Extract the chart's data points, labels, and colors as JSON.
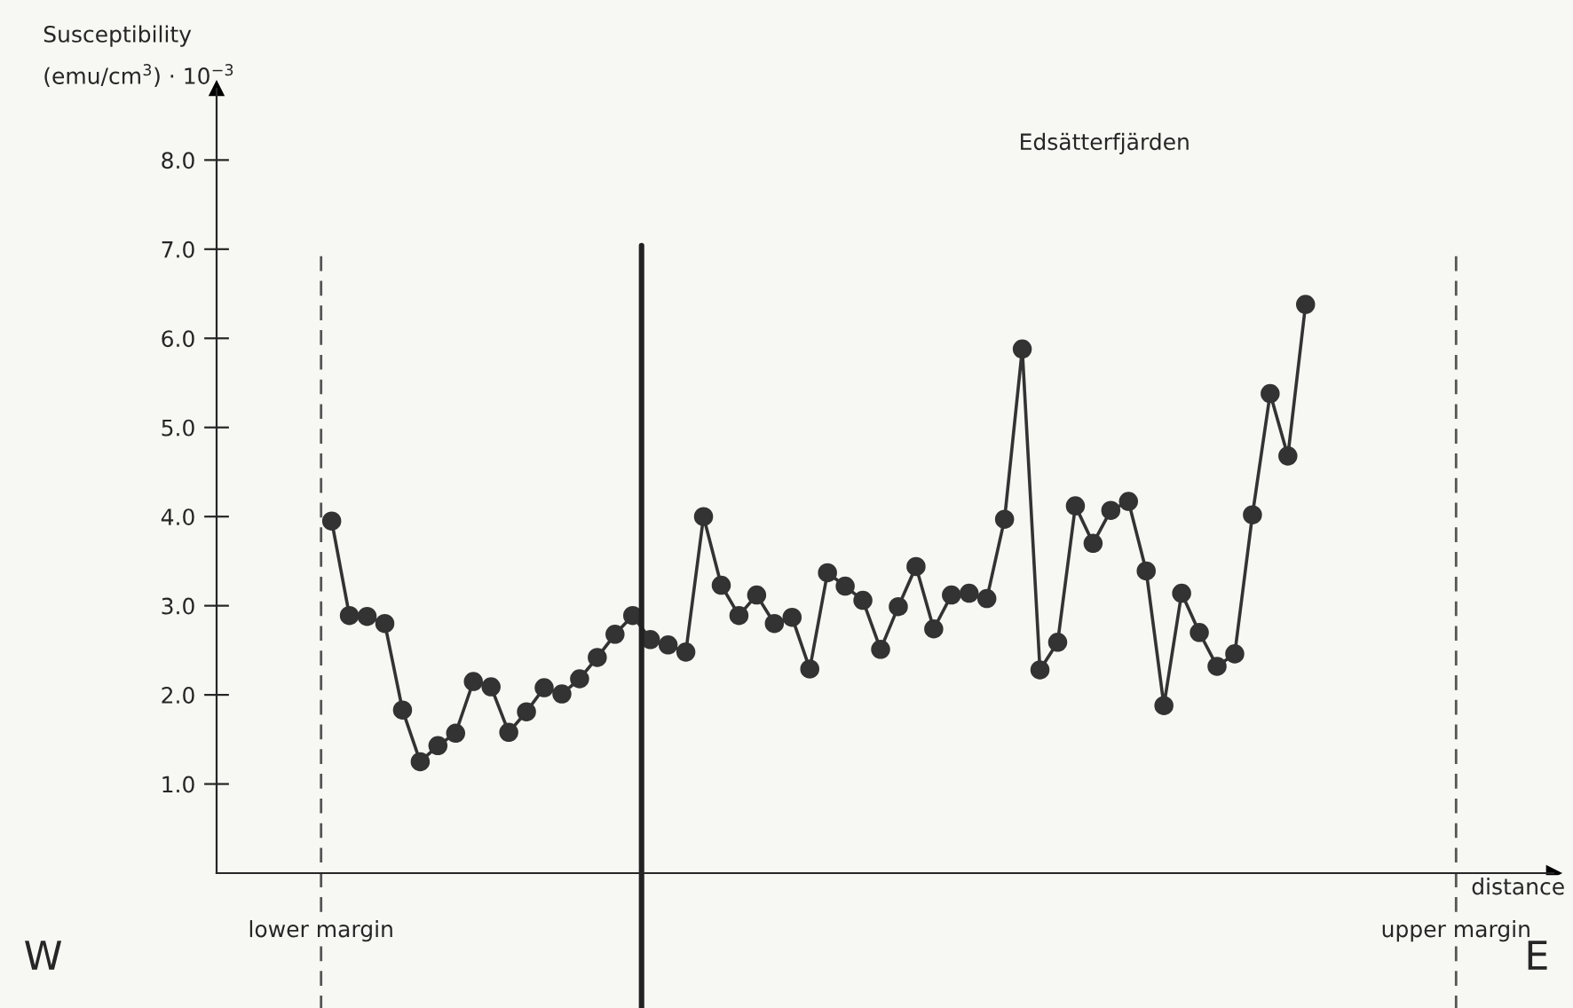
{
  "chart_data": {
    "type": "line",
    "title": "Edsätterfjärden",
    "ylabel": "Susceptibility\n(emu/cm$^{3}$) · 10$^{−3}$",
    "categories": [
      null,
      null,
      null,
      null,
      null,
      null,
      null,
      null,
      null,
      null,
      null,
      null,
      null,
      null,
      null,
      null,
      null,
      null,
      null,
      null,
      null,
      null,
      null,
      null,
      null,
      null,
      null,
      null,
      null,
      null,
      null,
      null,
      null,
      null,
      null,
      null,
      null,
      null,
      null,
      null,
      null,
      null,
      null,
      null,
      null,
      null,
      null,
      null,
      null,
      null,
      null,
      null,
      null,
      null,
      null,
      null
    ],
    "series": [
      {
        "color": "#333333",
        "values": [
          3.95,
          2.89,
          2.88,
          2.8,
          1.83,
          1.25,
          1.43,
          1.57,
          2.15,
          2.09,
          1.58,
          1.81,
          2.08,
          2.01,
          2.18,
          2.42,
          2.68,
          2.89,
          2.62,
          2.56,
          2.48,
          4.0,
          3.23,
          2.89,
          3.12,
          2.8,
          2.87,
          2.29,
          3.37,
          3.22,
          3.06,
          2.51,
          2.99,
          3.44,
          2.74,
          3.12,
          3.14,
          3.08,
          3.97,
          5.88,
          2.28,
          2.59,
          4.12,
          3.7,
          4.07,
          4.17,
          3.39,
          1.88,
          3.14,
          2.7,
          2.32,
          2.46,
          4.02,
          5.38,
          4.68,
          6.38
        ]
      }
    ],
    "ylim": [
      0,
      8.8
    ],
    "yticks": [
      {
        "value": 1,
        "label": "1.0"
      },
      {
        "value": 2,
        "label": "2.0"
      },
      {
        "value": 3,
        "label": "3.0"
      },
      {
        "value": 4,
        "label": "4.0"
      },
      {
        "value": 5,
        "label": "5.0"
      },
      {
        "value": 6,
        "label": "6.0"
      },
      {
        "value": 7,
        "label": "7.0"
      },
      {
        "value": 8,
        "label": "8.0"
      }
    ],
    "tick_labels": "y",
    "marker": "circle",
    "line_style": "solid",
    "grid": false,
    "legend": false,
    "ref_lines": [
      {
        "axis": "x",
        "label": "lower margin",
        "line_style": "dashed",
        "color": "#555555"
      },
      {
        "axis": "x",
        "label": "upper margin",
        "line_style": "dashed",
        "color": "#555555"
      },
      {
        "axis": "x",
        "line_style": "solid",
        "color": "#222222"
      }
    ],
    "annotations": [
      "distance",
      "W",
      "E"
    ]
  }
}
